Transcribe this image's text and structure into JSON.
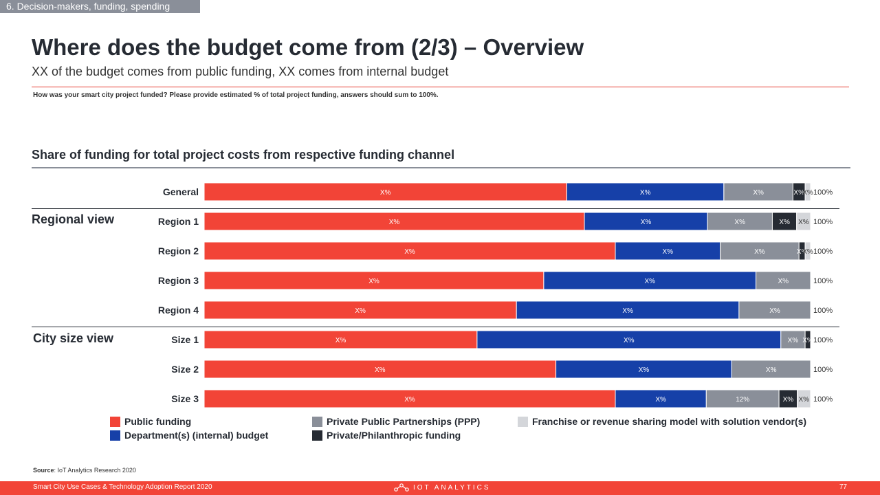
{
  "header": {
    "section_tag": "6. Decision-makers, funding, spending",
    "title": "Where does the budget come from (2/3) – Overview",
    "subtitle": "XX of the budget comes from public funding, XX comes from internal budget",
    "question": "How was your smart city project funded?  Please provide estimated % of total project funding, answers should sum to 100%."
  },
  "colors": {
    "public": "#f24437",
    "department": "#1640a8",
    "ppp": "#8a8f99",
    "private": "#262b33",
    "franchise": "#d4d6da"
  },
  "groups": {
    "regional": "Regional view",
    "city_size": "City size view"
  },
  "chart_data": {
    "type": "bar",
    "orientation": "horizontal",
    "stacked": true,
    "title": "Share of funding for total project costs from respective funding channel",
    "categories": [
      "General",
      "Region 1",
      "Region 2",
      "Region 3",
      "Region 4",
      "Size 1",
      "Size 2",
      "Size 3"
    ],
    "totals": [
      "100%",
      "100%",
      "100%",
      "100%",
      "100%",
      "100%",
      "100%",
      "100%"
    ],
    "xlim": [
      0,
      100
    ],
    "series": [
      {
        "name": "Public funding",
        "color_key": "public",
        "values": [
          59.8,
          62.7,
          67.8,
          56.0,
          51.5,
          45.0,
          58.0,
          67.8
        ],
        "labels": [
          "X%",
          "X%",
          "X%",
          "X%",
          "X%",
          "X%",
          "X%",
          "X%"
        ]
      },
      {
        "name": "Department(s) (internal) budget",
        "color_key": "department",
        "values": [
          25.9,
          20.3,
          17.3,
          35.0,
          36.7,
          50.1,
          29.0,
          15.0
        ],
        "labels": [
          "X%",
          "X%",
          "X%",
          "X%",
          "X%",
          "X%",
          "X%",
          "X%"
        ]
      },
      {
        "name": "Private Public Partnerships (PPP)",
        "color_key": "ppp",
        "values": [
          11.4,
          10.7,
          13.0,
          9.0,
          11.8,
          4.0,
          13.0,
          12.0
        ],
        "labels": [
          "X%",
          "X%",
          "X%",
          "X%",
          "X%",
          "X%",
          "X%",
          "12%"
        ]
      },
      {
        "name": "Private/Philanthropic funding",
        "color_key": "private",
        "values": [
          2.0,
          4.0,
          1.0,
          0,
          0,
          0.9,
          0,
          3.0
        ],
        "labels": [
          "X%",
          "X%",
          "X%",
          "",
          "",
          "X%",
          "",
          "X%"
        ]
      },
      {
        "name": "Franchise or revenue sharing model with solution vendor(s)",
        "color_key": "franchise",
        "values": [
          0.9,
          2.3,
          0.9,
          0,
          0,
          0,
          0,
          2.2
        ],
        "labels": [
          "X%",
          "X%",
          "X%",
          "",
          "",
          "",
          "",
          "X%"
        ]
      }
    ]
  },
  "source": {
    "label": "Source",
    "text": ": IoT Analytics Research 2020"
  },
  "footer": {
    "report": "Smart City Use Cases & Technology Adoption Report 2020",
    "logo": "IOT ANALYTICS",
    "page": "77"
  }
}
